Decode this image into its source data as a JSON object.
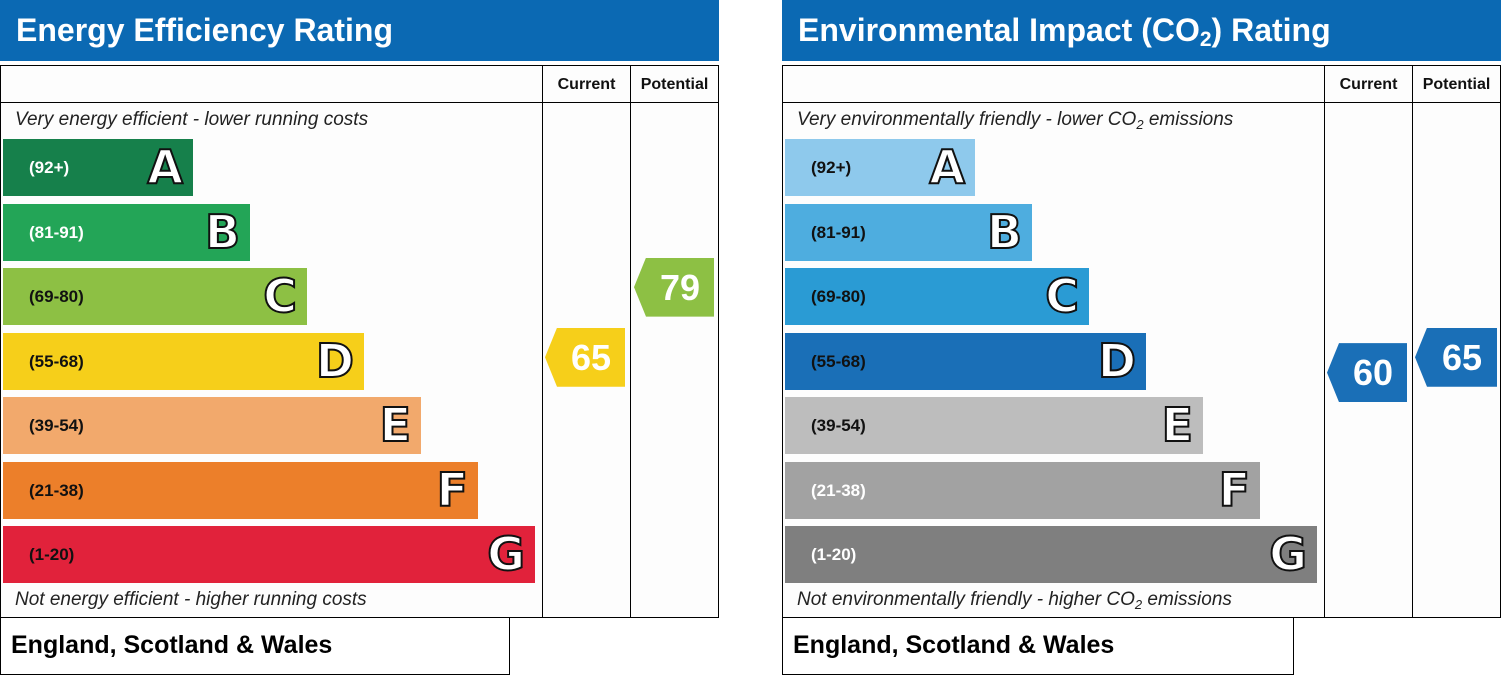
{
  "chart_data": [
    {
      "type": "bar",
      "title": "Energy Efficiency Rating",
      "columns": [
        "Current",
        "Potential"
      ],
      "top_note": "Very energy efficient - lower running costs",
      "bottom_note": "Not energy efficient - higher running costs",
      "footer": "England, Scotland & Wales",
      "bands": [
        {
          "range": "(92+)",
          "letter": "A",
          "color": "#16804b",
          "text_color": "#ffffff"
        },
        {
          "range": "(81-91)",
          "letter": "B",
          "color": "#23a557",
          "text_color": "#ffffff"
        },
        {
          "range": "(69-80)",
          "letter": "C",
          "color": "#8dc044",
          "text_color": "#111111"
        },
        {
          "range": "(55-68)",
          "letter": "D",
          "color": "#f6cf1a",
          "text_color": "#111111"
        },
        {
          "range": "(39-54)",
          "letter": "E",
          "color": "#f2a96c",
          "text_color": "#111111"
        },
        {
          "range": "(21-38)",
          "letter": "F",
          "color": "#ec7f2a",
          "text_color": "#111111"
        },
        {
          "range": "(1-20)",
          "letter": "G",
          "color": "#e1223b",
          "text_color": "#111111"
        }
      ],
      "current": {
        "value": "65",
        "band": "D",
        "color": "#f6cf1a"
      },
      "potential": {
        "value": "79",
        "band": "C",
        "color": "#8dc044"
      }
    },
    {
      "type": "bar",
      "title": "Environmental Impact (CO",
      "title_sub": "2",
      "title_end": ") Rating",
      "columns": [
        "Current",
        "Potential"
      ],
      "top_note": "Very environmentally friendly - lower CO",
      "top_note_sub": "2",
      "top_note_end": " emissions",
      "bottom_note": "Not environmentally friendly - higher CO",
      "bottom_note_sub": "2",
      "bottom_note_end": " emissions",
      "footer": "England, Scotland & Wales",
      "bands": [
        {
          "range": "(92+)",
          "letter": "A",
          "color": "#8ec9ec",
          "text_color": "#111111"
        },
        {
          "range": "(81-91)",
          "letter": "B",
          "color": "#4eaddf",
          "text_color": "#111111"
        },
        {
          "range": "(69-80)",
          "letter": "C",
          "color": "#2a9bd4",
          "text_color": "#111111"
        },
        {
          "range": "(55-68)",
          "letter": "D",
          "color": "#1a6fb7",
          "text_color": "#111111"
        },
        {
          "range": "(39-54)",
          "letter": "E",
          "color": "#bdbdbd",
          "text_color": "#111111"
        },
        {
          "range": "(21-38)",
          "letter": "F",
          "color": "#a2a2a2",
          "text_color": "#ffffff"
        },
        {
          "range": "(1-20)",
          "letter": "G",
          "color": "#7f7f7f",
          "text_color": "#ffffff"
        }
      ],
      "current": {
        "value": "60",
        "band": "D",
        "color": "#1a6fb7"
      },
      "potential": {
        "value": "65",
        "band": "D",
        "color": "#1a6fb7"
      }
    }
  ]
}
